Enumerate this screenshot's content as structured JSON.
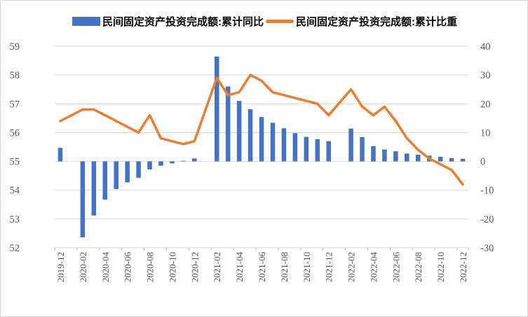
{
  "chart_data": {
    "type": "combo-bar-line",
    "x": [
      "2019-12",
      "2020-02",
      "2020-03",
      "2020-04",
      "2020-05",
      "2020-06",
      "2020-07",
      "2020-08",
      "2020-09",
      "2020-10",
      "2020-11",
      "2020-12",
      "2021-02",
      "2021-03",
      "2021-04",
      "2021-05",
      "2021-06",
      "2021-07",
      "2021-08",
      "2021-09",
      "2021-10",
      "2021-11",
      "2021-12",
      "2022-02",
      "2022-03",
      "2022-04",
      "2022-05",
      "2022-06",
      "2022-07",
      "2022-08",
      "2022-09",
      "2022-10",
      "2022-11",
      "2022-12"
    ],
    "series": [
      {
        "name": "民间固定资产投资完成额:累计同比",
        "type": "bar",
        "axis": "right",
        "color": "#4472C4",
        "values": [
          4.7,
          -26.4,
          -18.8,
          -13.3,
          -9.6,
          -7.3,
          -5.7,
          -2.8,
          -1.5,
          -0.7,
          0.2,
          1.0,
          36.4,
          26.0,
          21.0,
          18.1,
          15.4,
          13.4,
          11.5,
          9.8,
          8.5,
          7.7,
          7.0,
          11.4,
          8.4,
          5.3,
          4.1,
          3.5,
          2.7,
          2.3,
          2.0,
          1.6,
          1.1,
          0.9
        ]
      },
      {
        "name": "民间固定资产投资完成额:累计比重",
        "type": "line",
        "axis": "left",
        "color": "#ED7D31",
        "values": [
          56.4,
          56.8,
          56.8,
          56.6,
          56.4,
          56.2,
          56.0,
          56.6,
          55.8,
          55.7,
          55.6,
          55.7,
          57.9,
          57.3,
          57.4,
          58.0,
          57.8,
          57.4,
          57.3,
          57.2,
          57.1,
          57.0,
          56.6,
          57.5,
          56.9,
          56.6,
          56.9,
          56.4,
          55.8,
          55.4,
          55.1,
          54.9,
          54.7,
          54.2
        ]
      }
    ],
    "x_tick_labels": [
      "2019-12",
      "2020-02",
      "2020-04",
      "2020-06",
      "2020-08",
      "2020-10",
      "2020-12",
      "2021-02",
      "2021-04",
      "2021-06",
      "2021-08",
      "2021-10",
      "2021-12",
      "2022-02",
      "2022-04",
      "2022-06",
      "2022-08",
      "2022-10",
      "2022-12"
    ],
    "left_axis": {
      "min": 52,
      "max": 59,
      "ticks": [
        59,
        58,
        57,
        56,
        55,
        54,
        53,
        52
      ]
    },
    "right_axis": {
      "min": -30,
      "max": 40,
      "ticks": [
        40,
        30,
        20,
        10,
        0,
        -10,
        -20,
        -30
      ]
    },
    "title": "",
    "xlabel": "",
    "ylabel_left": "",
    "ylabel_right": "",
    "grid": "horizontal",
    "legend_position": "top",
    "colors": {
      "background": "#FFFFFF",
      "gridline": "#D9D9D9",
      "tick_mark": "#BFBFBF",
      "axis_text": "#595959",
      "legend_text": "#000000"
    }
  },
  "legend": {
    "items": [
      {
        "label": "民间固定资产投资完成额:累计同比"
      },
      {
        "label": "民间固定资产投资完成额:累计比重"
      }
    ]
  }
}
